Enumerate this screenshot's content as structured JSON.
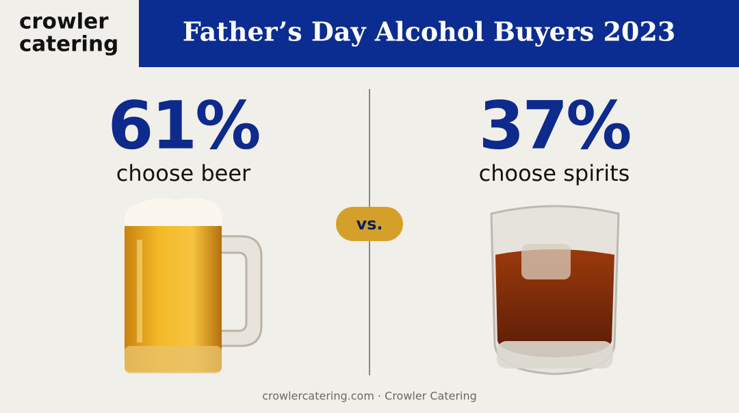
{
  "logo": {
    "line1": "crowler",
    "line2": "catering"
  },
  "header": {
    "title": "Father’s Day Alcohol Buyers 2023"
  },
  "left": {
    "stat": "61%",
    "label": "choose beer"
  },
  "versus": "vs.",
  "right": {
    "stat": "37%",
    "label": "choose spirits"
  },
  "footer": "crowlercatering.com · Crowler Catering"
}
